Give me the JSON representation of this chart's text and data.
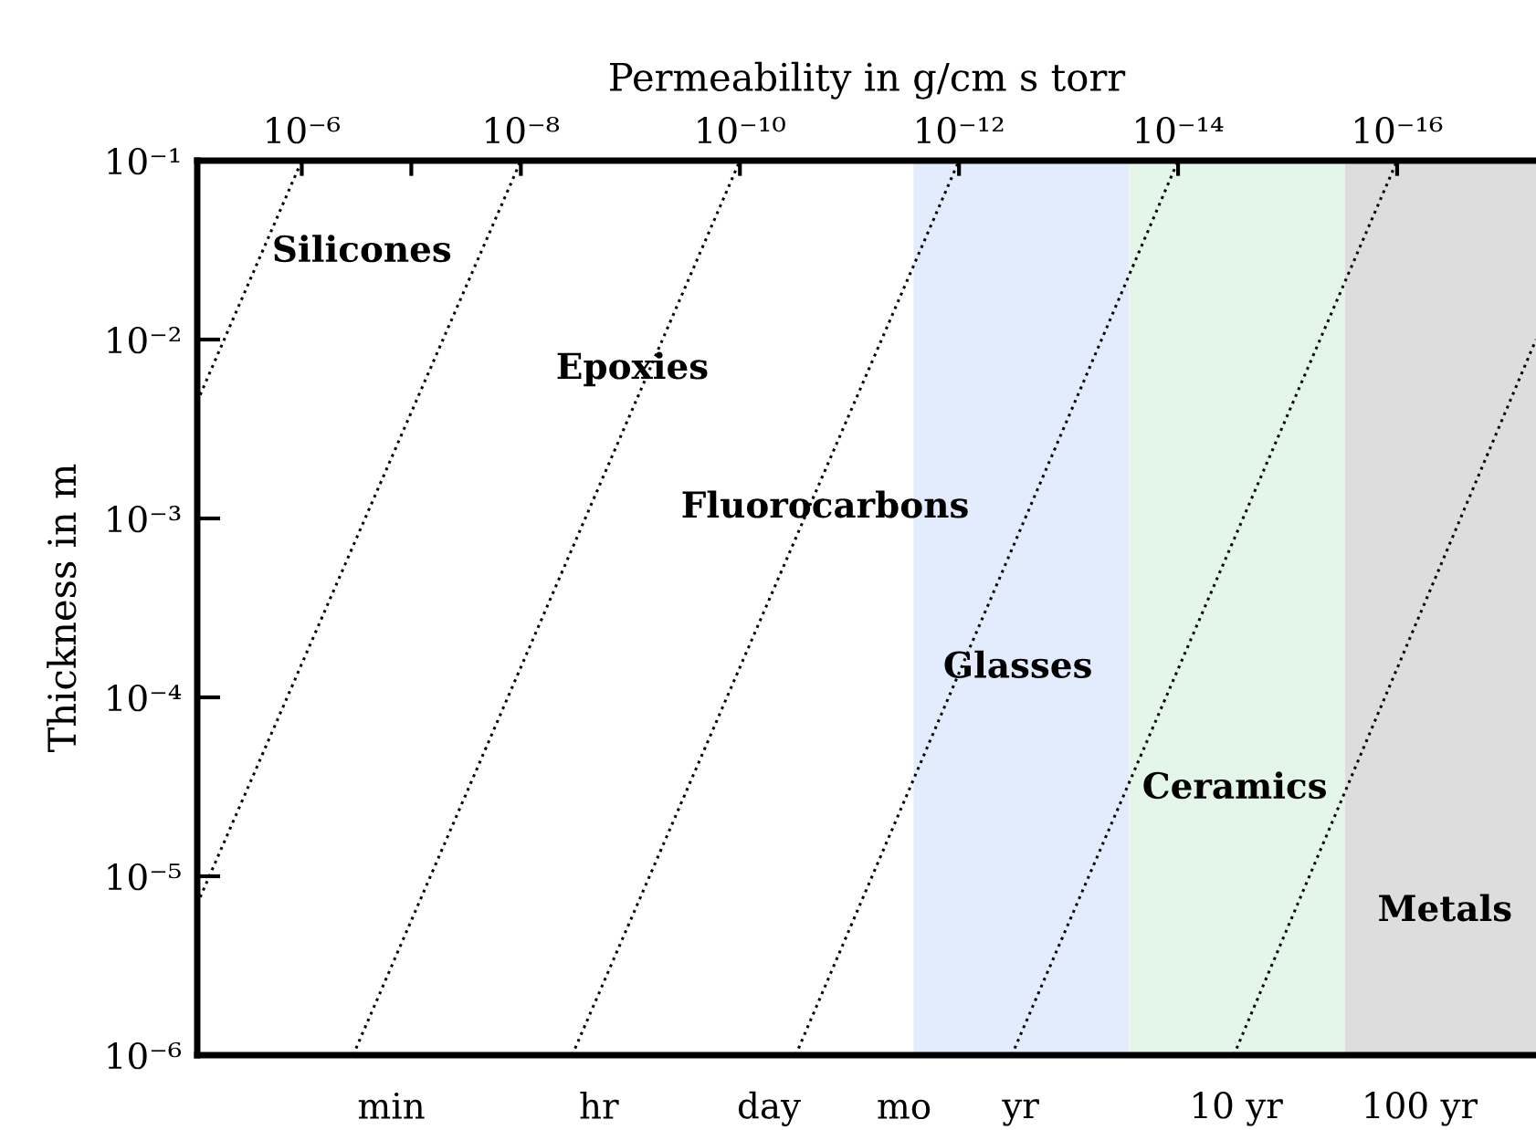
{
  "chart_data": {
    "type": "line",
    "xlabel": "Permeability in g/cm s torr",
    "ylabel": "Thickness in m",
    "log": "xy",
    "line_style": "dotted",
    "xlim": [
      9e-06,
      5.4e-18
    ],
    "xticks": [
      {
        "value": 1e-06,
        "label": "10⁻⁶"
      },
      {
        "value": 1e-07,
        "label": null
      },
      {
        "value": 1e-08,
        "label": "10⁻⁸"
      },
      {
        "value": 1e-10,
        "label": "10⁻¹⁰"
      },
      {
        "value": 1e-12,
        "label": "10⁻¹²"
      },
      {
        "value": 1e-14,
        "label": "10⁻¹⁴"
      },
      {
        "value": 1e-16,
        "label": "10⁻¹⁶"
      }
    ],
    "ylim": [
      1e-06,
      0.1
    ],
    "yticks": [
      {
        "value": 1e-06,
        "label": "10⁻⁶"
      },
      {
        "value": 1e-05,
        "label": "10⁻⁵"
      },
      {
        "value": 0.0001,
        "label": "10⁻⁴"
      },
      {
        "value": 0.001,
        "label": "10⁻³"
      },
      {
        "value": 0.01,
        "label": "10⁻²"
      },
      {
        "value": 0.1,
        "label": "10⁻¹"
      }
    ],
    "series": [
      {
        "color": "#000000",
        "x": [
          9e-06,
          1e-06
        ],
        "values": [
          0.0045,
          0.1
        ]
      },
      {
        "color": "#000000",
        "x": [
          9e-06,
          1e-08
        ],
        "values": [
          7e-06,
          0.1
        ]
      },
      {
        "color": "#000000",
        "x": [
          3.4e-07,
          1e-10
        ],
        "values": [
          1e-06,
          0.1
        ]
      },
      {
        "color": "#000000",
        "x": [
          3.4e-09,
          1e-12
        ],
        "values": [
          1e-06,
          0.1
        ]
      },
      {
        "color": "#000000",
        "x": [
          3.1e-11,
          1e-14
        ],
        "values": [
          1e-06,
          0.1
        ]
      },
      {
        "color": "#000000",
        "x": [
          3.3e-13,
          1e-16
        ],
        "values": [
          1e-06,
          0.1
        ]
      },
      {
        "color": "#000000",
        "x": [
          3.1e-15,
          5.4e-18
        ],
        "values": [
          1e-06,
          0.01
        ]
      }
    ],
    "bands": [
      {
        "axis": "x",
        "from": 2.6e-12,
        "to": 2.8e-14,
        "color": "#e3ecfc"
      },
      {
        "axis": "x",
        "from": 2.8e-14,
        "to": 3e-16,
        "color": "#e4f5e9"
      },
      {
        "axis": "x",
        "from": 3e-16,
        "to": 5.4e-18,
        "color": "#dddddd"
      }
    ],
    "annotations": [
      "Silicones",
      "Epoxies",
      "Fluorocarbons",
      "Glasses",
      "Ceramics",
      "Metals",
      "min",
      "hr",
      "day",
      "mo",
      "yr",
      "10 yr",
      "100 yr"
    ]
  }
}
